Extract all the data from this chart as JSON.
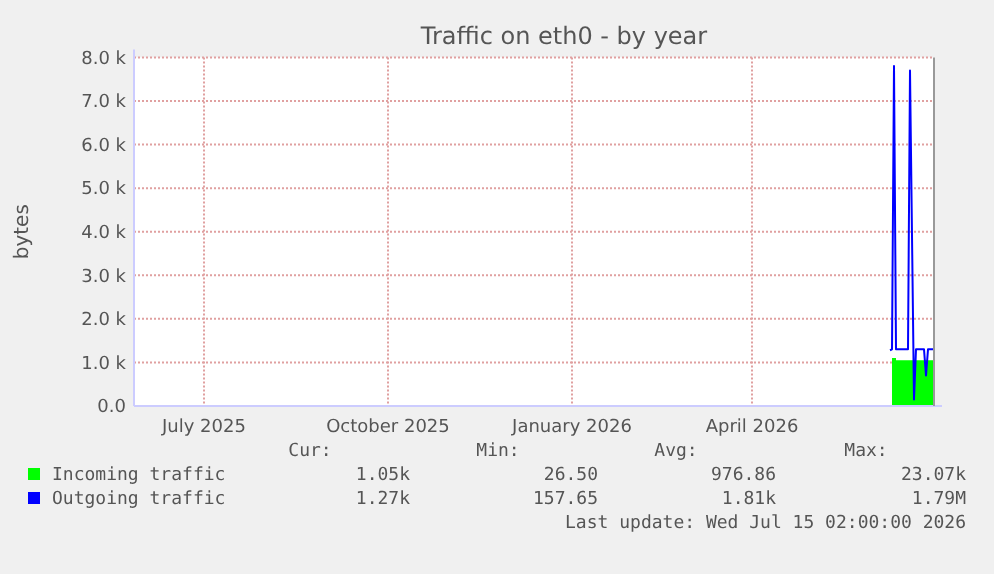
{
  "chart_data": {
    "type": "line",
    "title": "Traffic on eth0 - by year",
    "ylabel": "bytes",
    "xlim": [
      "2025-06-10",
      "2026-07-15"
    ],
    "xticks": [
      {
        "value": "2025-07-15",
        "label": "July 2025"
      },
      {
        "value": "2025-10-15",
        "label": "October 2025"
      },
      {
        "value": "2026-01-15",
        "label": "January 2026"
      },
      {
        "value": "2026-04-15",
        "label": "April 2026"
      }
    ],
    "ylim": [
      0,
      8000
    ],
    "yticks": [
      {
        "value": 0,
        "label": "0.0"
      },
      {
        "value": 1000,
        "label": "1.0 k"
      },
      {
        "value": 2000,
        "label": "2.0 k"
      },
      {
        "value": 3000,
        "label": "3.0 k"
      },
      {
        "value": 4000,
        "label": "4.0 k"
      },
      {
        "value": 5000,
        "label": "5.0 k"
      },
      {
        "value": 6000,
        "label": "6.0 k"
      },
      {
        "value": 7000,
        "label": "7.0 k"
      },
      {
        "value": 8000,
        "label": "8.0 k"
      }
    ],
    "grid": true,
    "legend": "bottom",
    "series": [
      {
        "name": "Incoming traffic",
        "type": "area",
        "color": "#00ff00",
        "x": [
          "2026-06-24",
          "2026-06-26",
          "2026-07-02",
          "2026-07-05",
          "2026-07-06",
          "2026-07-15"
        ],
        "values": [
          1100,
          1050,
          1050,
          1000,
          1050,
          1050
        ]
      },
      {
        "name": "Outgoing traffic",
        "color": "#0000ff",
        "x": [
          "2026-06-23",
          "2026-06-24",
          "2026-06-25",
          "2026-06-26",
          "2026-07-02",
          "2026-07-03",
          "2026-07-05",
          "2026-07-06",
          "2026-07-10",
          "2026-07-11",
          "2026-07-12",
          "2026-07-15"
        ],
        "values": [
          1280,
          1300,
          7800,
          1300,
          1300,
          7700,
          150,
          1300,
          1300,
          700,
          1300,
          1300
        ]
      }
    ],
    "annotations": [
      "Cur:",
      "Min:",
      "Avg:",
      "Max:",
      "1.05k",
      "26.50",
      "976.86",
      "23.07k",
      "1.27k",
      "157.65",
      "1.81k",
      "1.79M",
      "Last update: Wed Jul 15 02:00:00 2026"
    ]
  }
}
